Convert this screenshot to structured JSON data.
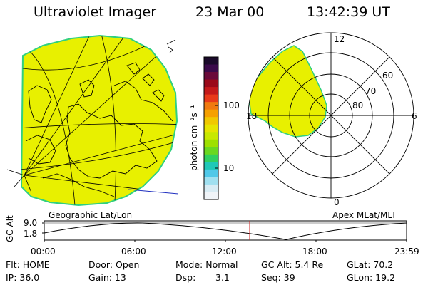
{
  "header": {
    "instrument": "Ultraviolet Imager",
    "date": "23 Mar 00",
    "time": "13:42:39 UT"
  },
  "colorbar": {
    "unit_label": "photon cm⁻²s⁻¹",
    "ticks": [
      "100",
      "10"
    ],
    "colors": [
      "#1a0a2a",
      "#3a0a4a",
      "#6a0a3a",
      "#9a0a1a",
      "#c41a1a",
      "#e83a1a",
      "#f07a10",
      "#f5a000",
      "#f0c800",
      "#e6e400",
      "#c8e800",
      "#9ee000",
      "#6ad820",
      "#30d060",
      "#20c8b8",
      "#50c8e8",
      "#a0e0f0",
      "#d8ecf4",
      "#f0f4f8"
    ]
  },
  "geo_map": {
    "label": "Geographic Lat/Lon",
    "fill_color": "#e8f000",
    "coast_color": "#000000",
    "edge_color": "#30d080"
  },
  "polar_plot": {
    "label": "Apex MLat/MLT",
    "mlt_labels": [
      "12",
      "18",
      "6",
      "0"
    ],
    "lat_labels": [
      "60",
      "70",
      "80"
    ],
    "fill_color": "#e8f000"
  },
  "altitude_plot": {
    "ylabel": "GC Alt",
    "yticks": [
      "9.0",
      "1.8"
    ],
    "xticks": [
      "00:00",
      "06:00",
      "12:00",
      "18:00",
      "23:59"
    ],
    "marker_color": "#cc2020"
  },
  "info": {
    "flt": "Flt: HOME",
    "door": "Door: Open",
    "mode": "Mode: Normal",
    "gc_alt": "GC Alt: 5.4 Re",
    "glat": "GLat: 70.2",
    "ip": "IP: 36.0",
    "gain": "Gain: 13",
    "dsp": "Dsp:",
    "dsp_val": "3.1",
    "seq": "Seq: 39",
    "glon": "GLon: 19.2"
  }
}
